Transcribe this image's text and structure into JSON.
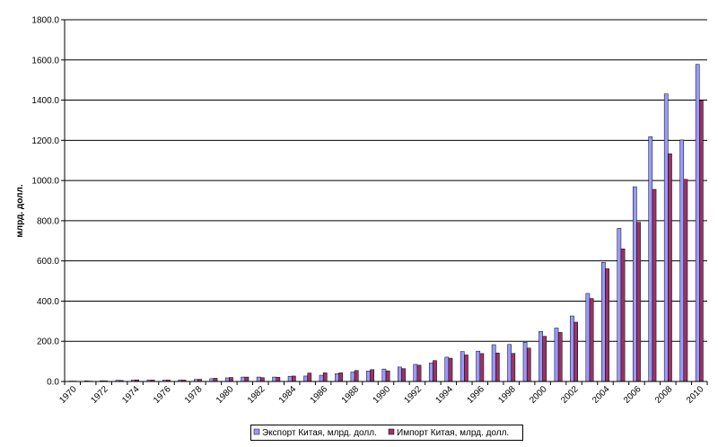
{
  "chart_data": {
    "type": "bar",
    "title": "",
    "xlabel": "",
    "ylabel": "млрд. долл.",
    "ylim": [
      0,
      1800
    ],
    "yticks": [
      "0.0",
      "200.0",
      "400.0",
      "600.0",
      "800.0",
      "1000.0",
      "1200.0",
      "1400.0",
      "1600.0",
      "1800.0"
    ],
    "categories": [
      "1970",
      "1971",
      "1972",
      "1973",
      "1974",
      "1975",
      "1976",
      "1977",
      "1978",
      "1979",
      "1980",
      "1981",
      "1982",
      "1983",
      "1984",
      "1985",
      "1986",
      "1987",
      "1988",
      "1989",
      "1990",
      "1991",
      "1992",
      "1993",
      "1994",
      "1995",
      "1996",
      "1997",
      "1998",
      "1999",
      "2000",
      "2001",
      "2002",
      "2003",
      "2004",
      "2005",
      "2006",
      "2007",
      "2008",
      "2009",
      "2010"
    ],
    "category_labels_shown": [
      "1970",
      "1972",
      "1974",
      "1976",
      "1978",
      "1980",
      "1982",
      "1984",
      "1986",
      "1988",
      "1990",
      "1992",
      "1994",
      "1996",
      "1998",
      "2000",
      "2002",
      "2004",
      "2006",
      "2008",
      "2010"
    ],
    "grid": true,
    "legend_position": "bottom",
    "series": [
      {
        "name": "Экспорт Китая, млрд. долл.",
        "color": "#9999ff",
        "values": [
          2,
          3,
          4,
          6,
          7,
          7,
          7,
          8,
          10,
          14,
          18,
          22,
          22,
          22,
          26,
          27,
          31,
          39,
          47,
          52,
          62,
          72,
          85,
          92,
          121,
          149,
          151,
          183,
          184,
          195,
          249,
          266,
          326,
          438,
          593,
          762,
          969,
          1218,
          1431,
          1202,
          1578
        ]
      },
      {
        "name": "Импорт Китая, млрд. долл.",
        "color": "#993366",
        "values": [
          2,
          2,
          3,
          5,
          8,
          7,
          7,
          7,
          11,
          16,
          20,
          22,
          19,
          21,
          27,
          42,
          43,
          43,
          55,
          59,
          53,
          64,
          81,
          104,
          116,
          132,
          139,
          142,
          140,
          166,
          225,
          244,
          295,
          413,
          561,
          660,
          792,
          956,
          1133,
          1006,
          1396
        ]
      }
    ]
  }
}
